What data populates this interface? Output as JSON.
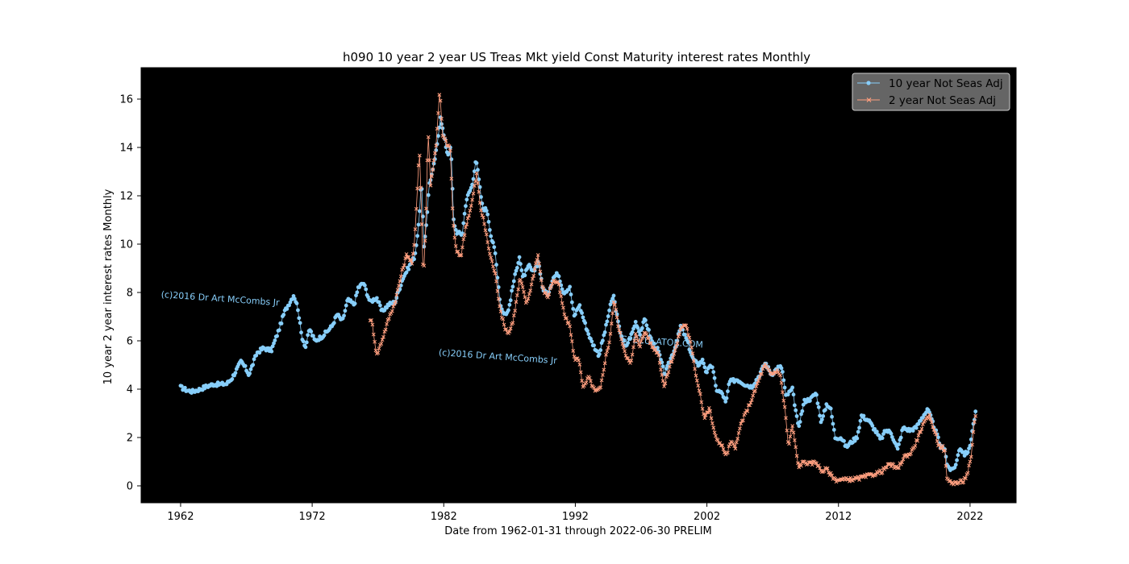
{
  "chart_data": {
    "type": "line",
    "title": "h090 10 year 2 year US Treas Mkt yield Const Maturity interest rates Monthly",
    "xlabel": "Date from 1962-01-31 through 2022-06-30 PRELIM",
    "ylabel": "10 year 2 year interest rates Monthly",
    "xlim": [
      1959,
      2025.5
    ],
    "ylim": [
      -0.7,
      17.3
    ],
    "x_ticks": [
      1962,
      1972,
      1982,
      1992,
      2002,
      2012,
      2022
    ],
    "y_ticks": [
      0,
      2,
      4,
      6,
      8,
      10,
      12,
      14,
      16
    ],
    "background": "#000000",
    "grid": false,
    "legend": "top-right",
    "watermarks": [
      {
        "text": "(c)2016 Dr Art McCombs Jr",
        "x": 1960.5,
        "y": 7.8
      },
      {
        "text": "(c)2016 Dr Art McCombs Jr",
        "x": 1981.6,
        "y": 5.4
      },
      {
        "text": "SPECULATOR.COM",
        "x": 1995.5,
        "y": 5.95
      }
    ],
    "series": [
      {
        "name": "10 year Not Seas Adj",
        "color": "#87CEFA",
        "marker": "dot",
        "start_year": 1962,
        "start_month": 1,
        "end_year": 2022,
        "end_month": 6,
        "points": [
          [
            1962.0,
            4.08
          ],
          [
            1962.5,
            3.95
          ],
          [
            1962.9,
            3.9
          ],
          [
            1963.5,
            4.0
          ],
          [
            1963.9,
            4.1
          ],
          [
            1964.5,
            4.2
          ],
          [
            1965.0,
            4.2
          ],
          [
            1965.5,
            4.22
          ],
          [
            1965.9,
            4.45
          ],
          [
            1966.6,
            5.15
          ],
          [
            1966.9,
            4.9
          ],
          [
            1967.2,
            4.6
          ],
          [
            1967.8,
            5.5
          ],
          [
            1968.3,
            5.7
          ],
          [
            1968.9,
            5.6
          ],
          [
            1969.5,
            6.5
          ],
          [
            1969.9,
            7.2
          ],
          [
            1970.3,
            7.6
          ],
          [
            1970.6,
            7.9
          ],
          [
            1970.9,
            7.4
          ],
          [
            1971.2,
            6.2
          ],
          [
            1971.5,
            5.75
          ],
          [
            1971.8,
            6.5
          ],
          [
            1972.2,
            6.0
          ],
          [
            1972.8,
            6.2
          ],
          [
            1973.5,
            6.6
          ],
          [
            1973.9,
            7.1
          ],
          [
            1974.3,
            6.8
          ],
          [
            1974.7,
            7.7
          ],
          [
            1975.2,
            7.5
          ],
          [
            1975.5,
            8.2
          ],
          [
            1975.9,
            8.4
          ],
          [
            1976.4,
            7.6
          ],
          [
            1976.9,
            7.8
          ],
          [
            1977.3,
            7.2
          ],
          [
            1977.8,
            7.5
          ],
          [
            1978.3,
            7.6
          ],
          [
            1978.9,
            8.6
          ],
          [
            1979.4,
            9.1
          ],
          [
            1979.8,
            9.5
          ],
          [
            1980.1,
            10.8
          ],
          [
            1980.3,
            12.7
          ],
          [
            1980.5,
            9.9
          ],
          [
            1980.7,
            11.0
          ],
          [
            1980.9,
            12.5
          ],
          [
            1981.2,
            13.1
          ],
          [
            1981.5,
            14.1
          ],
          [
            1981.75,
            15.3
          ],
          [
            1982.0,
            14.5
          ],
          [
            1982.3,
            13.7
          ],
          [
            1982.55,
            14.0
          ],
          [
            1982.75,
            11.0
          ],
          [
            1982.95,
            10.5
          ],
          [
            1983.4,
            10.4
          ],
          [
            1983.7,
            11.8
          ],
          [
            1984.2,
            12.5
          ],
          [
            1984.45,
            13.6
          ],
          [
            1984.7,
            12.5
          ],
          [
            1984.95,
            11.5
          ],
          [
            1985.3,
            11.4
          ],
          [
            1985.6,
            10.3
          ],
          [
            1985.9,
            9.7
          ],
          [
            1986.3,
            7.5
          ],
          [
            1986.6,
            7.1
          ],
          [
            1986.9,
            7.2
          ],
          [
            1987.3,
            8.4
          ],
          [
            1987.75,
            9.5
          ],
          [
            1988.0,
            8.6
          ],
          [
            1988.5,
            9.1
          ],
          [
            1988.8,
            8.8
          ],
          [
            1989.2,
            9.3
          ],
          [
            1989.5,
            8.2
          ],
          [
            1989.9,
            7.9
          ],
          [
            1990.3,
            8.6
          ],
          [
            1990.7,
            8.8
          ],
          [
            1991.1,
            8.0
          ],
          [
            1991.6,
            8.2
          ],
          [
            1991.9,
            7.0
          ],
          [
            1992.3,
            7.5
          ],
          [
            1992.8,
            6.6
          ],
          [
            1993.2,
            6.0
          ],
          [
            1993.8,
            5.4
          ],
          [
            1994.3,
            6.5
          ],
          [
            1994.6,
            7.3
          ],
          [
            1994.9,
            7.9
          ],
          [
            1995.3,
            6.6
          ],
          [
            1995.8,
            5.7
          ],
          [
            1996.3,
            6.3
          ],
          [
            1996.6,
            6.8
          ],
          [
            1996.9,
            6.3
          ],
          [
            1997.3,
            6.9
          ],
          [
            1997.8,
            6.0
          ],
          [
            1998.3,
            5.6
          ],
          [
            1998.8,
            4.6
          ],
          [
            1999.2,
            5.2
          ],
          [
            1999.7,
            5.9
          ],
          [
            2000.0,
            6.6
          ],
          [
            2000.5,
            6.0
          ],
          [
            2000.9,
            5.3
          ],
          [
            2001.3,
            5.0
          ],
          [
            2001.7,
            5.2
          ],
          [
            2001.95,
            4.7
          ],
          [
            2002.4,
            5.0
          ],
          [
            2002.7,
            4.0
          ],
          [
            2003.2,
            3.8
          ],
          [
            2003.45,
            3.4
          ],
          [
            2003.7,
            4.3
          ],
          [
            2004.3,
            4.4
          ],
          [
            2004.9,
            4.2
          ],
          [
            2005.4,
            4.1
          ],
          [
            2005.9,
            4.5
          ],
          [
            2006.45,
            5.1
          ],
          [
            2006.9,
            4.6
          ],
          [
            2007.4,
            4.9
          ],
          [
            2007.7,
            4.9
          ],
          [
            2008.0,
            3.7
          ],
          [
            2008.5,
            4.0
          ],
          [
            2008.95,
            2.4
          ],
          [
            2009.4,
            3.5
          ],
          [
            2009.9,
            3.6
          ],
          [
            2010.3,
            3.85
          ],
          [
            2010.7,
            2.6
          ],
          [
            2011.1,
            3.4
          ],
          [
            2011.4,
            3.2
          ],
          [
            2011.75,
            2.0
          ],
          [
            2012.2,
            2.0
          ],
          [
            2012.6,
            1.6
          ],
          [
            2012.95,
            1.8
          ],
          [
            2013.4,
            2.0
          ],
          [
            2013.75,
            2.9
          ],
          [
            2014.3,
            2.7
          ],
          [
            2014.9,
            2.2
          ],
          [
            2015.2,
            1.9
          ],
          [
            2015.6,
            2.3
          ],
          [
            2016.0,
            2.2
          ],
          [
            2016.5,
            1.5
          ],
          [
            2016.9,
            2.4
          ],
          [
            2017.4,
            2.3
          ],
          [
            2017.9,
            2.4
          ],
          [
            2018.3,
            2.8
          ],
          [
            2018.8,
            3.15
          ],
          [
            2019.1,
            2.7
          ],
          [
            2019.5,
            2.1
          ],
          [
            2019.75,
            1.6
          ],
          [
            2020.1,
            1.55
          ],
          [
            2020.25,
            0.87
          ],
          [
            2020.6,
            0.62
          ],
          [
            2020.95,
            0.9
          ],
          [
            2021.2,
            1.6
          ],
          [
            2021.6,
            1.3
          ],
          [
            2021.95,
            1.5
          ],
          [
            2022.2,
            2.4
          ],
          [
            2022.45,
            3.1
          ]
        ]
      },
      {
        "name": "2 year Not Seas Adj",
        "color": "#FF9F7F",
        "marker": "x",
        "start_year": 1976,
        "start_month": 6,
        "end_year": 2022,
        "end_month": 6,
        "points": [
          [
            1976.45,
            6.9
          ],
          [
            1976.6,
            6.6
          ],
          [
            1976.9,
            5.4
          ],
          [
            1977.3,
            6.0
          ],
          [
            1977.8,
            6.9
          ],
          [
            1978.3,
            7.6
          ],
          [
            1978.8,
            8.8
          ],
          [
            1979.2,
            9.6
          ],
          [
            1979.6,
            9.2
          ],
          [
            1979.8,
            10.2
          ],
          [
            1980.15,
            14.0
          ],
          [
            1980.3,
            11.5
          ],
          [
            1980.45,
            8.5
          ],
          [
            1980.65,
            11.0
          ],
          [
            1980.8,
            14.8
          ],
          [
            1981.0,
            12.5
          ],
          [
            1981.4,
            14.0
          ],
          [
            1981.7,
            16.4
          ],
          [
            1981.9,
            14.5
          ],
          [
            1982.2,
            14.2
          ],
          [
            1982.5,
            13.9
          ],
          [
            1982.7,
            11.0
          ],
          [
            1982.95,
            9.7
          ],
          [
            1983.3,
            9.5
          ],
          [
            1983.7,
            10.8
          ],
          [
            1984.1,
            11.6
          ],
          [
            1984.5,
            12.9
          ],
          [
            1984.8,
            11.5
          ],
          [
            1985.1,
            10.8
          ],
          [
            1985.5,
            9.6
          ],
          [
            1985.9,
            8.8
          ],
          [
            1986.3,
            7.3
          ],
          [
            1986.6,
            6.6
          ],
          [
            1986.95,
            6.3
          ],
          [
            1987.3,
            6.9
          ],
          [
            1987.8,
            8.6
          ],
          [
            1988.3,
            7.5
          ],
          [
            1988.7,
            8.4
          ],
          [
            1989.15,
            9.6
          ],
          [
            1989.5,
            8.2
          ],
          [
            1989.9,
            7.8
          ],
          [
            1990.3,
            8.5
          ],
          [
            1990.7,
            8.4
          ],
          [
            1991.2,
            7.0
          ],
          [
            1991.6,
            6.6
          ],
          [
            1991.9,
            5.3
          ],
          [
            1992.3,
            5.2
          ],
          [
            1992.6,
            4.0
          ],
          [
            1993.0,
            4.5
          ],
          [
            1993.5,
            3.9
          ],
          [
            1993.9,
            4.0
          ],
          [
            1994.3,
            5.3
          ],
          [
            1994.6,
            6.0
          ],
          [
            1994.95,
            7.7
          ],
          [
            1995.3,
            6.5
          ],
          [
            1995.8,
            5.5
          ],
          [
            1996.2,
            5.0
          ],
          [
            1996.6,
            6.3
          ],
          [
            1996.9,
            5.8
          ],
          [
            1997.3,
            6.4
          ],
          [
            1997.8,
            5.8
          ],
          [
            1998.3,
            5.5
          ],
          [
            1998.75,
            4.1
          ],
          [
            1999.2,
            5.0
          ],
          [
            1999.7,
            5.8
          ],
          [
            2000.0,
            6.5
          ],
          [
            2000.4,
            6.7
          ],
          [
            2000.8,
            5.8
          ],
          [
            2001.2,
            4.5
          ],
          [
            2001.5,
            3.8
          ],
          [
            2001.8,
            2.8
          ],
          [
            2002.2,
            3.2
          ],
          [
            2002.6,
            2.1
          ],
          [
            2002.95,
            1.8
          ],
          [
            2003.3,
            1.5
          ],
          [
            2003.45,
            1.2
          ],
          [
            2003.8,
            1.8
          ],
          [
            2004.2,
            1.6
          ],
          [
            2004.6,
            2.6
          ],
          [
            2004.95,
            3.0
          ],
          [
            2005.5,
            3.7
          ],
          [
            2005.95,
            4.4
          ],
          [
            2006.4,
            5.0
          ],
          [
            2006.9,
            4.6
          ],
          [
            2007.4,
            4.8
          ],
          [
            2007.6,
            4.5
          ],
          [
            2007.95,
            3.1
          ],
          [
            2008.2,
            1.6
          ],
          [
            2008.5,
            2.5
          ],
          [
            2008.95,
            0.8
          ],
          [
            2009.4,
            1.0
          ],
          [
            2009.8,
            0.9
          ],
          [
            2010.3,
            1.0
          ],
          [
            2010.7,
            0.6
          ],
          [
            2011.1,
            0.7
          ],
          [
            2011.5,
            0.4
          ],
          [
            2011.8,
            0.25
          ],
          [
            2012.5,
            0.25
          ],
          [
            2013.5,
            0.3
          ],
          [
            2014.5,
            0.45
          ],
          [
            2015.3,
            0.6
          ],
          [
            2015.9,
            0.9
          ],
          [
            2016.5,
            0.7
          ],
          [
            2017.0,
            1.2
          ],
          [
            2017.5,
            1.35
          ],
          [
            2017.9,
            1.8
          ],
          [
            2018.4,
            2.5
          ],
          [
            2018.9,
            2.9
          ],
          [
            2019.3,
            2.3
          ],
          [
            2019.6,
            1.7
          ],
          [
            2019.9,
            1.6
          ],
          [
            2020.1,
            1.4
          ],
          [
            2020.25,
            0.25
          ],
          [
            2020.6,
            0.14
          ],
          [
            2021.0,
            0.12
          ],
          [
            2021.5,
            0.2
          ],
          [
            2021.8,
            0.5
          ],
          [
            2022.1,
            1.2
          ],
          [
            2022.3,
            2.5
          ],
          [
            2022.45,
            3.0
          ]
        ]
      }
    ]
  }
}
